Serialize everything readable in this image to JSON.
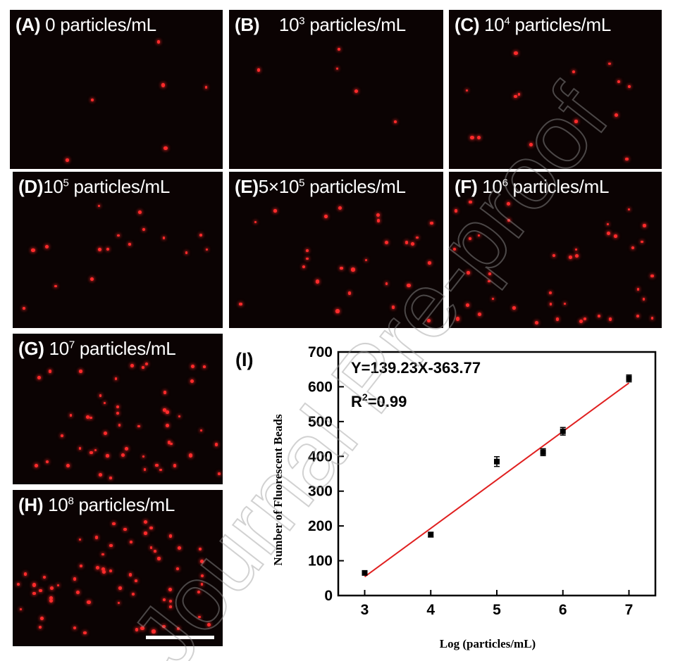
{
  "panels": [
    {
      "letter": "(A)",
      "prefix": "0",
      "sup": "",
      "suffix": " particles/mL"
    },
    {
      "letter": "(B)",
      "prefix": "10",
      "sup": "3",
      "suffix": " particles/mL"
    },
    {
      "letter": "(C)",
      "prefix": "10",
      "sup": "4",
      "suffix": " particles/mL"
    },
    {
      "letter": "(D)",
      "prefix": "10",
      "sup": "5",
      "suffix": " particles/mL"
    },
    {
      "letter": "(E)",
      "prefix": "5×10",
      "sup": "5",
      "suffix": " particles/mL"
    },
    {
      "letter": "(F)",
      "prefix": "10",
      "sup": "6",
      "suffix": " particles/mL"
    },
    {
      "letter": "(G)",
      "prefix": "10",
      "sup": "7",
      "suffix": " particles/mL"
    },
    {
      "letter": "(H)",
      "prefix": "10",
      "sup": "8",
      "suffix": " particles/mL"
    }
  ],
  "chart_data": {
    "type": "scatter",
    "panel_label": "(I)",
    "xlabel": "Log (particles/mL)",
    "ylabel": "Number of  Fluorescent Beads",
    "xlim": [
      2.6,
      7.4
    ],
    "ylim": [
      0,
      700
    ],
    "xticks": [
      3,
      4,
      5,
      6,
      7
    ],
    "yticks": [
      0,
      100,
      200,
      300,
      400,
      500,
      600,
      700
    ],
    "points": [
      {
        "x": 3,
        "y": 65,
        "err": 6
      },
      {
        "x": 4,
        "y": 175,
        "err": 7
      },
      {
        "x": 5,
        "y": 385,
        "err": 14
      },
      {
        "x": 5.7,
        "y": 412,
        "err": 10
      },
      {
        "x": 6,
        "y": 472,
        "err": 11
      },
      {
        "x": 7,
        "y": 624,
        "err": 10
      }
    ],
    "fit": {
      "slope": 139.23,
      "intercept": -363.77,
      "x_range": [
        3,
        7
      ],
      "color": "#e02020"
    },
    "equation": "Y=139.23X-363.77",
    "r2_prefix": "R",
    "r2_sup": "2",
    "r2_suffix": "=0.99",
    "marker_color": "#000000"
  },
  "watermark": "Journal Pre-proof",
  "colors": {
    "background": "#ffffff",
    "panel": "#0b0303",
    "bead": "#ff2b2b"
  }
}
